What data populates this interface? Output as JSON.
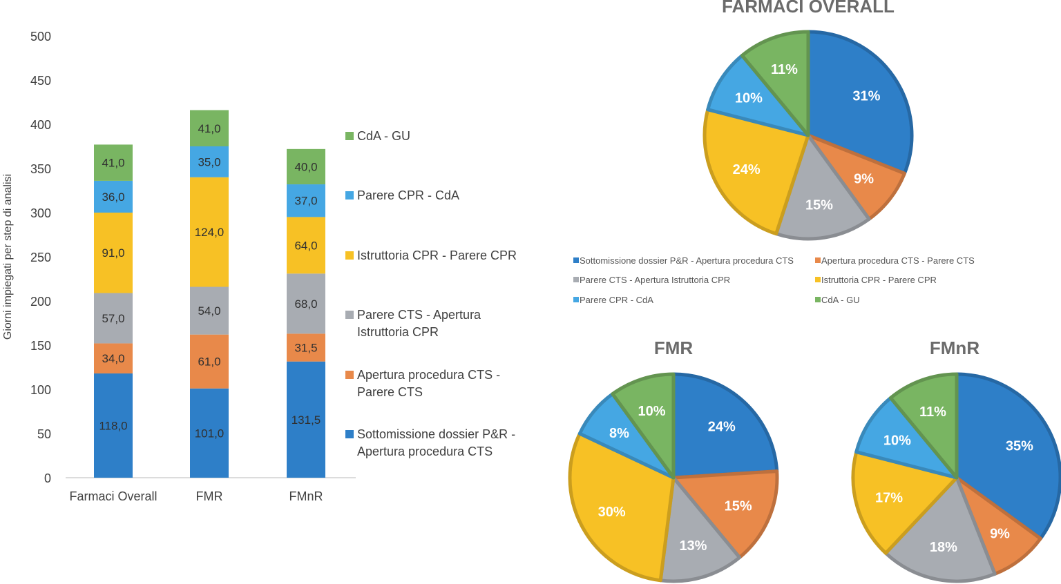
{
  "chart_data": [
    {
      "type": "bar",
      "stacked": true,
      "categories": [
        "Farmaci Overall",
        "FMR",
        "FMnR"
      ],
      "ylabel": "Giorni impiegati per step di analisi",
      "ylim": [
        0,
        500
      ],
      "yticks": [
        "0",
        "50",
        "100",
        "150",
        "200",
        "250",
        "300",
        "350",
        "400",
        "450",
        "500"
      ],
      "legend_position": "right",
      "series": [
        {
          "name": "Sottomissione dossier P&R - Apertura procedura CTS",
          "color": "#2e7fc8",
          "values": [
            118.0,
            101.0,
            131.5
          ],
          "labels": [
            "118,0",
            "101,0",
            "131,5"
          ]
        },
        {
          "name": "Apertura procedura CTS - Parere CTS",
          "color": "#e8894a",
          "values": [
            34.0,
            61.0,
            31.5
          ],
          "labels": [
            "34,0",
            "61,0",
            "31,5"
          ]
        },
        {
          "name": "Parere CTS - Apertura Istruttoria CPR",
          "color": "#a8acb2",
          "values": [
            57.0,
            54.0,
            68.0
          ],
          "labels": [
            "57,0",
            "54,0",
            "68,0"
          ]
        },
        {
          "name": "Istruttoria CPR - Parere CPR",
          "color": "#f7c125",
          "values": [
            91.0,
            124.0,
            64.0
          ],
          "labels": [
            "91,0",
            "124,0",
            "64,0"
          ]
        },
        {
          "name": "Parere CPR - CdA",
          "color": "#45a7e3",
          "values": [
            36.0,
            35.0,
            37.0
          ],
          "labels": [
            "36,0",
            "35,0",
            "37,0"
          ]
        },
        {
          "name": "CdA - GU",
          "color": "#79b562",
          "values": [
            41.0,
            41.0,
            40.0
          ],
          "labels": [
            "41,0",
            "41,0",
            "40,0"
          ]
        }
      ]
    },
    {
      "type": "pie",
      "title": "FARMACI OVERALL",
      "slices": [
        {
          "name": "Sottomissione dossier P&R - Apertura procedura CTS",
          "value": 31,
          "label": "31%",
          "color": "#2e7fc8"
        },
        {
          "name": "Apertura procedura CTS - Parere CTS",
          "value": 9,
          "label": "9%",
          "color": "#e8894a"
        },
        {
          "name": "Parere CTS - Apertura Istruttoria CPR",
          "value": 15,
          "label": "15%",
          "color": "#a8acb2"
        },
        {
          "name": "Istruttoria CPR - Parere CPR",
          "value": 24,
          "label": "24%",
          "color": "#f7c125"
        },
        {
          "name": "Parere CPR - CdA",
          "value": 10,
          "label": "10%",
          "color": "#45a7e3"
        },
        {
          "name": "CdA - GU",
          "value": 11,
          "label": "11%",
          "color": "#79b562"
        }
      ],
      "legend": [
        "Sottomissione dossier P&R - Apertura procedura CTS",
        "Apertura procedura CTS - Parere CTS",
        "Parere CTS - Apertura Istruttoria CPR",
        "Istruttoria CPR - Parere CPR",
        "Parere CPR - CdA",
        "CdA - GU"
      ]
    },
    {
      "type": "pie",
      "title": "FMR",
      "slices": [
        {
          "name": "Sottomissione dossier P&R - Apertura procedura CTS",
          "value": 24,
          "label": "24%",
          "color": "#2e7fc8"
        },
        {
          "name": "Apertura procedura CTS - Parere CTS",
          "value": 15,
          "label": "15%",
          "color": "#e8894a"
        },
        {
          "name": "Parere CTS - Apertura Istruttoria CPR",
          "value": 13,
          "label": "13%",
          "color": "#a8acb2"
        },
        {
          "name": "Istruttoria CPR - Parere CPR",
          "value": 30,
          "label": "30%",
          "color": "#f7c125"
        },
        {
          "name": "Parere CPR - CdA",
          "value": 8,
          "label": "8%",
          "color": "#45a7e3"
        },
        {
          "name": "CdA - GU",
          "value": 10,
          "label": "10%",
          "color": "#79b562"
        }
      ]
    },
    {
      "type": "pie",
      "title": "FMnR",
      "slices": [
        {
          "name": "Sottomissione dossier P&R - Apertura procedura CTS",
          "value": 35,
          "label": "35%",
          "color": "#2e7fc8"
        },
        {
          "name": "Apertura procedura CTS - Parere CTS",
          "value": 9,
          "label": "9%",
          "color": "#e8894a"
        },
        {
          "name": "Parere CTS - Apertura Istruttoria CPR",
          "value": 18,
          "label": "18%",
          "color": "#a8acb2"
        },
        {
          "name": "Istruttoria CPR - Parere CPR",
          "value": 17,
          "label": "17%",
          "color": "#f7c125"
        },
        {
          "name": "Parere CPR - CdA",
          "value": 10,
          "label": "10%",
          "color": "#45a7e3"
        },
        {
          "name": "CdA - GU",
          "value": 11,
          "label": "11%",
          "color": "#79b562"
        }
      ]
    }
  ]
}
